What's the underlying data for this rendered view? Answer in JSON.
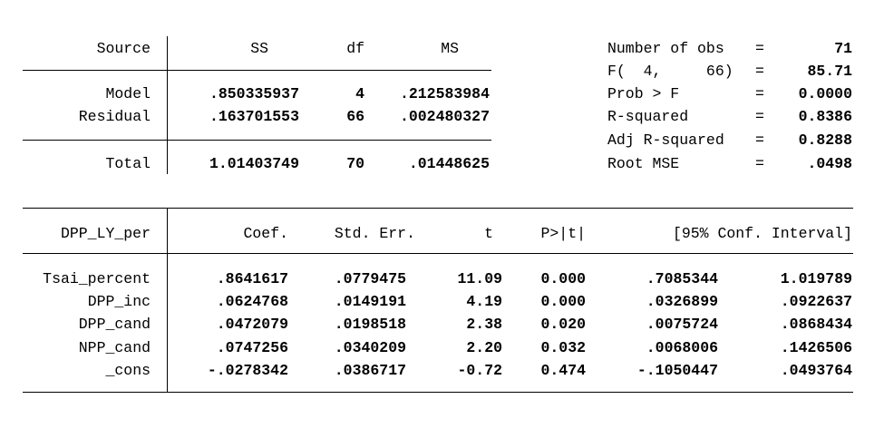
{
  "anova": {
    "headers": {
      "source": "Source",
      "ss": "SS",
      "df": "df",
      "ms": "MS"
    },
    "rows": [
      {
        "source": "Model",
        "ss": ".850335937",
        "df": "4",
        "ms": ".212583984"
      },
      {
        "source": "Residual",
        "ss": ".163701553",
        "df": "66",
        "ms": ".002480327"
      },
      {
        "source": "Total",
        "ss": "1.01403749",
        "df": "70",
        "ms": ".01448625"
      }
    ]
  },
  "stats": [
    {
      "label": "Number of obs",
      "eq": "=",
      "value": "71"
    },
    {
      "label": "F(  4,     66)",
      "eq": "=",
      "value": "85.71"
    },
    {
      "label": "Prob > F",
      "eq": "=",
      "value": "0.0000"
    },
    {
      "label": "R-squared",
      "eq": "=",
      "value": "0.8386"
    },
    {
      "label": "Adj R-squared",
      "eq": "=",
      "value": "0.8288"
    },
    {
      "label": "Root MSE",
      "eq": "=",
      "value": ".0498"
    }
  ],
  "coef": {
    "headers": {
      "var": "DPP_LY_per",
      "coef": "Coef.",
      "se": "Std. Err.",
      "t": "t",
      "p": "P>|t|",
      "ci": "[95% Conf. Interval]"
    },
    "rows": [
      {
        "var": "Tsai_percent",
        "coef": ".8641617",
        "se": ".0779475",
        "t": "11.09",
        "p": "0.000",
        "lo": ".7085344",
        "hi": "1.019789"
      },
      {
        "var": "DPP_inc",
        "coef": ".0624768",
        "se": ".0149191",
        "t": "4.19",
        "p": "0.000",
        "lo": ".0326899",
        "hi": ".0922637"
      },
      {
        "var": "DPP_cand",
        "coef": ".0472079",
        "se": ".0198518",
        "t": "2.38",
        "p": "0.020",
        "lo": ".0075724",
        "hi": ".0868434"
      },
      {
        "var": "NPP_cand",
        "coef": ".0747256",
        "se": ".0340209",
        "t": "2.20",
        "p": "0.032",
        "lo": ".0068006",
        "hi": ".1426506"
      },
      {
        "var": "_cons",
        "coef": "-.0278342",
        "se": ".0386717",
        "t": "-0.72",
        "p": "0.474",
        "lo": "-.1050447",
        "hi": ".0493764"
      }
    ]
  }
}
